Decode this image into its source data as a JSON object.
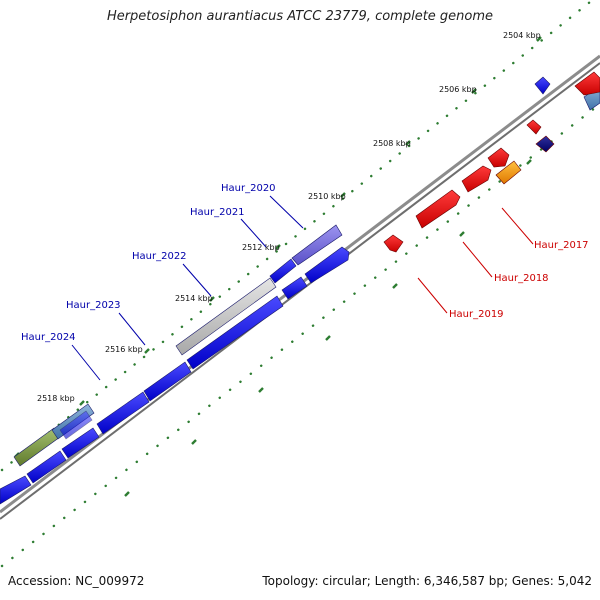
{
  "title": "Herpetosiphon aurantiacus ATCC 23779, complete genome",
  "footer": {
    "accession": "Accession: NC_009972",
    "summary": "Topology: circular; Length: 6,346,587 bp; Genes: 5,042"
  },
  "colors": {
    "backbone": "#8c8c8c",
    "forward_gene": "#0000ee",
    "reverse_gene": "#ee0000",
    "tick": "#2e7d32",
    "label_forward": "#0000aa",
    "label_reverse": "#cc0000"
  },
  "ruler": {
    "unit": "kbp",
    "labels": [
      "2504 kbp",
      "2506 kbp",
      "2508 kbp",
      "2510 kbp",
      "2512 kbp",
      "2514 kbp",
      "2516 kbp",
      "2518 kbp"
    ]
  },
  "gene_labels": [
    {
      "name": "Haur_2020",
      "strand": "forward"
    },
    {
      "name": "Haur_2021",
      "strand": "forward"
    },
    {
      "name": "Haur_2022",
      "strand": "forward"
    },
    {
      "name": "Haur_2023",
      "strand": "forward"
    },
    {
      "name": "Haur_2024",
      "strand": "forward"
    },
    {
      "name": "Haur_2017",
      "strand": "reverse"
    },
    {
      "name": "Haur_2018",
      "strand": "reverse"
    },
    {
      "name": "Haur_2019",
      "strand": "reverse"
    }
  ]
}
